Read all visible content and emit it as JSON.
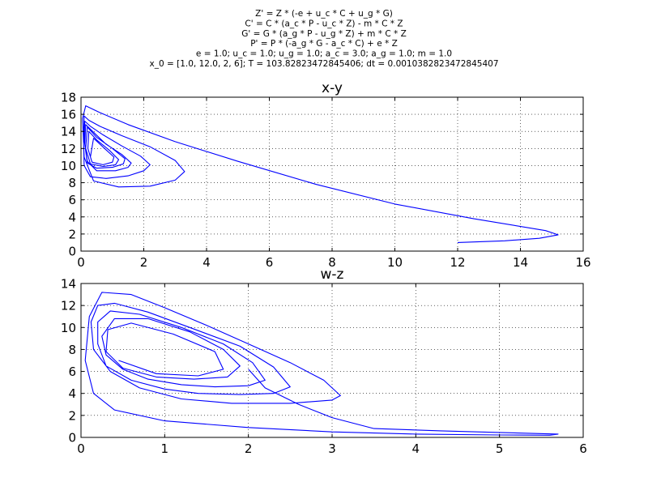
{
  "header": {
    "lines": [
      "Z' = Z * (-e + u_c * C + u_g * G)",
      "C' = C * (a_c * P - u_c * Z) - m * C * Z",
      "G' = G * (a_g * P - u_g * Z) + m * C * Z",
      "P' = P * (-a_g * G - a_c * C) + e * Z",
      "e = 1.0; u_c = 1.0; u_g = 1.0; a_c = 3.0; a_g = 1.0; m = 1.0",
      "x_0 = [1.0, 12.0, 2, 6]; T = 103.82823472845406; dt = 0.0010382823472845407"
    ]
  },
  "colors": {
    "series": "#0000ff",
    "grid": "#000000",
    "axes": "#000000"
  },
  "chart_data": [
    {
      "type": "line",
      "title": "x-y",
      "xlabel": "",
      "ylabel": "",
      "xlim": [
        0,
        16
      ],
      "ylim": [
        0,
        18
      ],
      "xticks": [
        0,
        2,
        4,
        6,
        8,
        10,
        12,
        14,
        16
      ],
      "yticks": [
        0,
        2,
        4,
        6,
        8,
        10,
        12,
        14,
        16,
        18
      ],
      "grid": true,
      "legend": "none",
      "series": [
        {
          "x": [
            12.0,
            13.5,
            14.6,
            15.2,
            14.8,
            12.5,
            10.0,
            7.5,
            5.0,
            3.0,
            1.5,
            0.6,
            0.15,
            0.05,
            0.1,
            0.4,
            1.2,
            2.2,
            3.0,
            3.3,
            3.0,
            2.2,
            1.3,
            0.6,
            0.25,
            0.1,
            0.08,
            0.1,
            0.3,
            0.8,
            1.5,
            2.0,
            2.2,
            1.9,
            1.3,
            0.7,
            0.3,
            0.12,
            0.1,
            0.2,
            0.5,
            1.1,
            1.5,
            1.6,
            1.3,
            0.8,
            0.4,
            0.15,
            0.12,
            0.2,
            0.5,
            1.0,
            1.35,
            1.4,
            1.0,
            0.5,
            0.2,
            0.15,
            0.3,
            0.7,
            1.1,
            1.2,
            0.9,
            0.5,
            0.25,
            0.22,
            0.35,
            0.7,
            1.0,
            1.05,
            0.75,
            0.4,
            0.3
          ],
          "y": [
            1.0,
            1.2,
            1.5,
            1.9,
            2.4,
            3.8,
            5.5,
            7.8,
            10.5,
            12.8,
            14.8,
            16.2,
            17.0,
            15.5,
            11.0,
            8.2,
            7.5,
            7.6,
            8.3,
            9.3,
            10.6,
            12.2,
            13.5,
            14.6,
            15.3,
            15.8,
            13.0,
            10.0,
            8.7,
            8.5,
            8.8,
            9.4,
            10.1,
            11.1,
            12.3,
            13.6,
            14.6,
            15.2,
            13.0,
            10.5,
            9.4,
            9.4,
            9.8,
            10.3,
            11.3,
            12.5,
            13.9,
            14.8,
            12.5,
            10.3,
            9.7,
            9.8,
            10.2,
            10.8,
            12.0,
            13.3,
            14.5,
            12.0,
            10.2,
            9.9,
            10.1,
            10.7,
            11.8,
            13.0,
            14.0,
            12.0,
            10.4,
            10.1,
            10.4,
            11.0,
            12.0,
            13.2,
            11.0
          ]
        }
      ]
    },
    {
      "type": "line",
      "title": "w-z",
      "xlabel": "",
      "ylabel": "",
      "xlim": [
        0,
        6
      ],
      "ylim": [
        0,
        14
      ],
      "xticks": [
        0,
        1,
        2,
        3,
        4,
        5,
        6
      ],
      "yticks": [
        0,
        2,
        4,
        6,
        8,
        10,
        12,
        14
      ],
      "grid": true,
      "legend": "none",
      "series": [
        {
          "x": [
            2.0,
            2.2,
            2.6,
            3.0,
            3.5,
            4.3,
            5.0,
            5.7,
            5.6,
            5.0,
            4.0,
            3.0,
            2.0,
            1.0,
            0.4,
            0.15,
            0.05,
            0.1,
            0.25,
            0.6,
            1.0,
            1.5,
            2.0,
            2.5,
            2.9,
            3.1,
            3.0,
            2.5,
            1.8,
            1.2,
            0.7,
            0.35,
            0.15,
            0.12,
            0.2,
            0.4,
            0.8,
            1.3,
            1.9,
            2.3,
            2.5,
            2.3,
            1.9,
            1.4,
            1.0,
            0.6,
            0.3,
            0.2,
            0.2,
            0.35,
            0.7,
            1.2,
            1.7,
            2.05,
            2.2,
            2.0,
            1.6,
            1.2,
            0.8,
            0.5,
            0.3,
            0.25,
            0.4,
            0.8,
            1.3,
            1.7,
            1.9,
            1.75,
            1.35,
            0.9,
            0.5,
            0.3,
            0.32,
            0.6,
            1.1,
            1.6,
            1.7,
            1.4,
            0.9,
            0.45
          ],
          "y": [
            6.2,
            4.5,
            3.0,
            1.8,
            0.8,
            0.6,
            0.45,
            0.3,
            0.2,
            0.22,
            0.3,
            0.5,
            0.9,
            1.5,
            2.5,
            4.0,
            7.0,
            11.0,
            13.2,
            13.0,
            11.8,
            10.2,
            8.5,
            6.8,
            5.2,
            3.8,
            3.4,
            3.1,
            3.1,
            3.5,
            4.5,
            6.0,
            8.0,
            10.5,
            12.0,
            12.2,
            11.4,
            10.0,
            8.3,
            6.4,
            4.6,
            4.0,
            3.9,
            4.0,
            4.4,
            5.2,
            6.5,
            8.5,
            10.5,
            11.5,
            11.2,
            10.0,
            8.5,
            6.8,
            5.2,
            4.7,
            4.6,
            4.8,
            5.3,
            6.2,
            7.5,
            9.2,
            10.8,
            10.8,
            9.6,
            8.0,
            6.5,
            5.5,
            5.3,
            5.5,
            6.3,
            7.8,
            9.8,
            10.4,
            9.4,
            7.8,
            6.2,
            5.6,
            5.8,
            7.0
          ]
        }
      ]
    }
  ]
}
